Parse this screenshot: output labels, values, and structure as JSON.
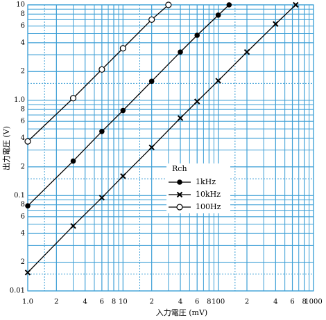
{
  "chart_data": {
    "type": "line",
    "log_x": true,
    "log_y": true,
    "grid": true,
    "xlabel": "入力電圧 (mV)",
    "ylabel": "出力電圧 (V)",
    "xlim": [
      1,
      1000
    ],
    "ylim": [
      0.01,
      10
    ],
    "xticks": [
      {
        "value": 1,
        "label": "1.0"
      },
      2,
      4,
      6,
      8,
      10,
      {
        "value": 20,
        "label": "2"
      },
      {
        "value": 40,
        "label": "4"
      },
      {
        "value": 60,
        "label": "6"
      },
      {
        "value": 80,
        "label": "8"
      },
      100,
      {
        "value": 200,
        "label": "2"
      },
      {
        "value": 400,
        "label": "4"
      },
      {
        "value": 600,
        "label": "6"
      },
      {
        "value": 800,
        "label": "8"
      },
      1000
    ],
    "yticks": [
      0.01,
      {
        "value": 0.02,
        "label": "2"
      },
      {
        "value": 0.04,
        "label": "4"
      },
      {
        "value": 0.06,
        "label": "6"
      },
      {
        "value": 0.08,
        "label": "8"
      },
      0.1,
      {
        "value": 0.2,
        "label": "2"
      },
      {
        "value": 0.4,
        "label": "4"
      },
      {
        "value": 0.6,
        "label": "6"
      },
      {
        "value": 0.8,
        "label": "8"
      },
      {
        "value": 1,
        "label": "1.0"
      },
      2,
      4,
      6,
      8,
      10
    ],
    "xminor": [
      3,
      5,
      7,
      9,
      30,
      50,
      70,
      90,
      300,
      500,
      700,
      900
    ],
    "yminor": [
      0.03,
      0.05,
      0.07,
      0.09,
      0.3,
      0.5,
      0.7,
      0.9,
      3,
      5,
      7,
      9
    ],
    "xdotted": [
      1.5,
      15,
      150
    ],
    "ydotted": [
      0.015,
      0.15,
      1.5
    ],
    "grid_color": "#3d9fd6",
    "legend_title": "Rch",
    "series": [
      {
        "name": "1kHz",
        "color": "#000000",
        "marker": "filled-circle",
        "x": [
          1,
          3,
          6,
          10,
          20,
          40,
          60,
          100,
          130
        ],
        "values": [
          0.078,
          0.23,
          0.47,
          0.78,
          1.58,
          3.2,
          4.8,
          7.8,
          10
        ]
      },
      {
        "name": "10kHz",
        "color": "#000000",
        "marker": "x",
        "x": [
          1,
          3,
          6,
          10,
          20,
          40,
          60,
          100,
          200,
          400,
          650
        ],
        "values": [
          0.0156,
          0.048,
          0.095,
          0.16,
          0.32,
          0.65,
          0.97,
          1.6,
          3.2,
          6.3,
          10
        ]
      },
      {
        "name": "100Hz",
        "color": "#000000",
        "marker": "open-circle",
        "x": [
          1,
          3,
          6,
          10,
          20,
          30
        ],
        "values": [
          0.37,
          1.05,
          2.1,
          3.5,
          7.0,
          10
        ]
      }
    ]
  }
}
